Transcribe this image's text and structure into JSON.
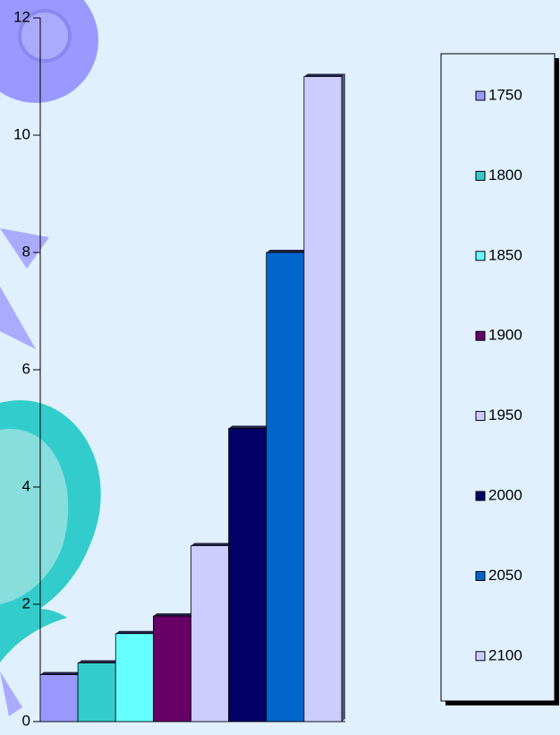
{
  "chart_data": {
    "type": "bar",
    "categories": [
      null
    ],
    "series": [
      {
        "name": "1750",
        "color": "#9999ff",
        "values": [
          0.8
        ]
      },
      {
        "name": "1800",
        "color": "#33cccc",
        "values": [
          1.0
        ]
      },
      {
        "name": "1850",
        "color": "#66ffff",
        "values": [
          1.5
        ]
      },
      {
        "name": "1900",
        "color": "#660066",
        "values": [
          1.8
        ]
      },
      {
        "name": "1950",
        "color": "#ccccff",
        "values": [
          3.0
        ]
      },
      {
        "name": "2000",
        "color": "#000066",
        "values": [
          5.0
        ]
      },
      {
        "name": "2050",
        "color": "#0066cc",
        "values": [
          8.0
        ]
      },
      {
        "name": "2100",
        "color": "#ccccff",
        "values": [
          11.0
        ]
      }
    ],
    "ylim": [
      0,
      12
    ],
    "yticks": [
      0,
      2,
      4,
      6,
      8,
      10,
      12
    ],
    "legend": "right"
  }
}
